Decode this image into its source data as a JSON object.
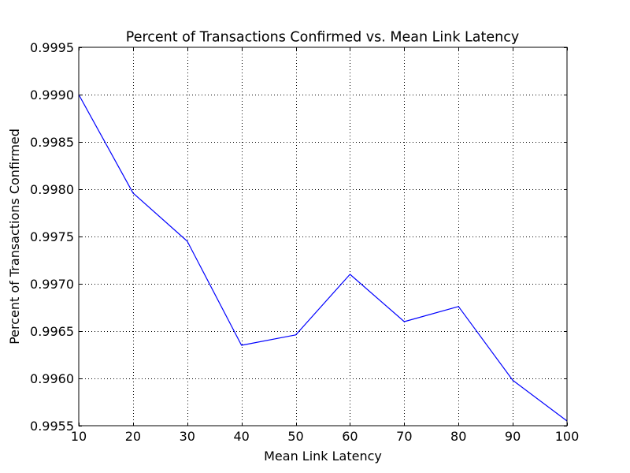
{
  "chart_data": {
    "type": "line",
    "title": "Percent of Transactions Confirmed vs. Mean Link Latency",
    "xlabel": "Mean Link Latency",
    "ylabel": "Percent of Transactions Confirmed",
    "xlim": [
      10,
      100
    ],
    "ylim": [
      0.9955,
      0.9995
    ],
    "x_ticks": [
      10,
      20,
      30,
      40,
      50,
      60,
      70,
      80,
      90,
      100
    ],
    "y_ticks": [
      0.9955,
      0.996,
      0.9965,
      0.997,
      0.9975,
      0.998,
      0.9985,
      0.999,
      0.9995
    ],
    "x_tick_labels": [
      "10",
      "20",
      "30",
      "40",
      "50",
      "60",
      "70",
      "80",
      "90",
      "100"
    ],
    "y_tick_labels": [
      "0.9955",
      "0.9960",
      "0.9965",
      "0.9970",
      "0.9975",
      "0.9980",
      "0.9985",
      "0.9990",
      "0.9995"
    ],
    "grid": true,
    "legend": "none",
    "series": [
      {
        "color": "#0000ff",
        "x": [
          10,
          20,
          30,
          40,
          50,
          60,
          70,
          80,
          90,
          100
        ],
        "y": [
          0.999,
          0.99796,
          0.99745,
          0.99635,
          0.99646,
          0.9971,
          0.9966,
          0.99676,
          0.99598,
          0.99555
        ]
      }
    ]
  }
}
